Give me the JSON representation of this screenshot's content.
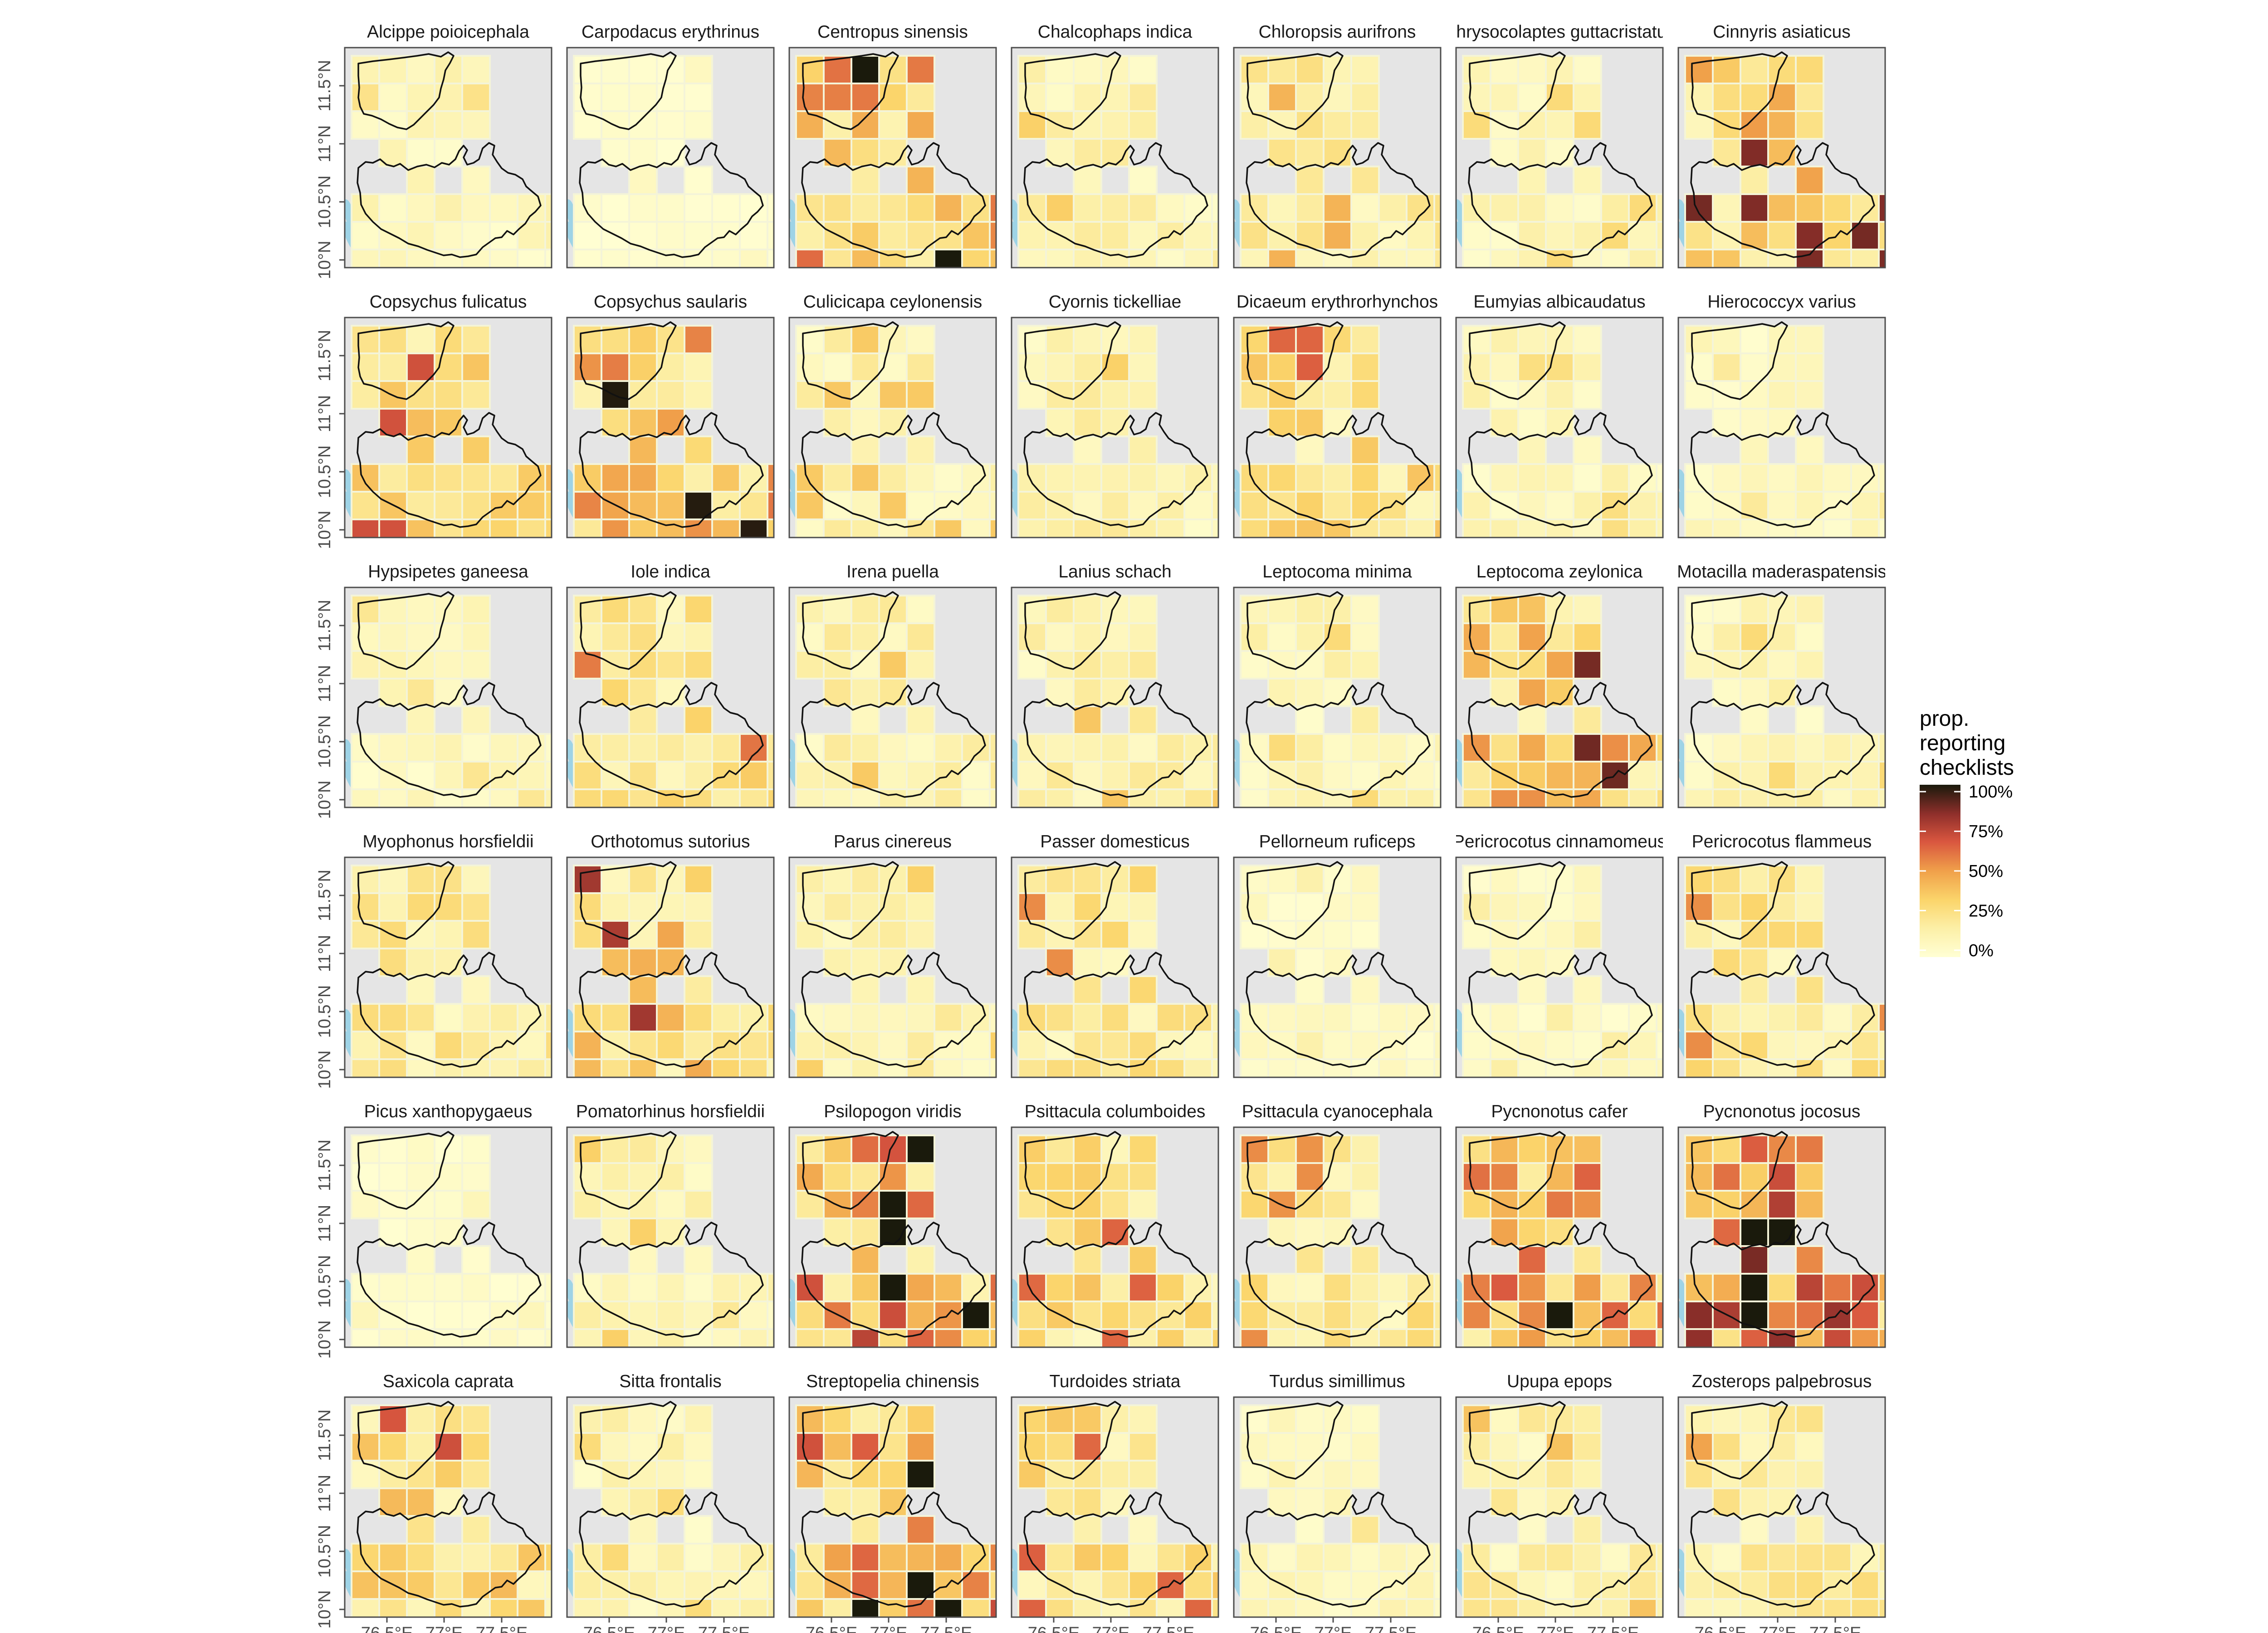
{
  "chart_data": {
    "type": "heatmap",
    "layout": {
      "columns": 7,
      "rows": 6
    },
    "x_ticks": [
      "76.5°E",
      "77°E",
      "77.5°E"
    ],
    "y_ticks": [
      "10°N",
      "10.5°N",
      "11°N",
      "11.5°N"
    ],
    "legend": {
      "title_lines": [
        "prop.",
        "reporting",
        "checklists"
      ],
      "labels": [
        "100%",
        "75%",
        "50%",
        "25%",
        "0%"
      ],
      "label_values": [
        100,
        75,
        50,
        25,
        0
      ],
      "colors": [
        "#ffffd4",
        "#fbd56b",
        "#f0a04a",
        "#e06a40",
        "#b93c36",
        "#7a2a26",
        "#1a1a0c"
      ],
      "placement": "right"
    },
    "colors": {
      "panel_background": "#e5e5e5",
      "panel_border": "#4d4d4d",
      "grid_line": "#f4f4d8",
      "outline": "#111111",
      "water": "#9ed3e6",
      "tick": "#4d4d4d"
    },
    "series": [
      {
        "name": "Alcippe poioicephala",
        "intensity": 0.1
      },
      {
        "name": "Carpodacus erythrinus",
        "intensity": 0.03
      },
      {
        "name": "Centropus sinensis",
        "intensity": 0.42
      },
      {
        "name": "Chalcophaps indica",
        "intensity": 0.14
      },
      {
        "name": "Chloropsis aurifrons",
        "intensity": 0.18
      },
      {
        "name": "Chrysocolaptes guttacristatus",
        "intensity": 0.12
      },
      {
        "name": "Cinnyris asiaticus",
        "intensity": 0.35
      },
      {
        "name": "Copsychus fulicatus",
        "intensity": 0.28
      },
      {
        "name": "Copsychus saularis",
        "intensity": 0.4
      },
      {
        "name": "Culicicapa ceylonensis",
        "intensity": 0.15
      },
      {
        "name": "Cyornis tickelliae",
        "intensity": 0.14
      },
      {
        "name": "Dicaeum erythrorhynchos",
        "intensity": 0.26
      },
      {
        "name": "Eumyias albicaudatus",
        "intensity": 0.11
      },
      {
        "name": "Hierococcyx varius",
        "intensity": 0.08
      },
      {
        "name": "Hypsipetes ganeesa",
        "intensity": 0.09
      },
      {
        "name": "Iole indica",
        "intensity": 0.24
      },
      {
        "name": "Irena puella",
        "intensity": 0.15
      },
      {
        "name": "Lanius schach",
        "intensity": 0.15
      },
      {
        "name": "Leptocoma minima",
        "intensity": 0.12
      },
      {
        "name": "Leptocoma zeylonica",
        "intensity": 0.36
      },
      {
        "name": "Motacilla maderaspatensis",
        "intensity": 0.12
      },
      {
        "name": "Myophonus horsfieldii",
        "intensity": 0.2
      },
      {
        "name": "Orthotomus sutorius",
        "intensity": 0.32
      },
      {
        "name": "Parus cinereus",
        "intensity": 0.14
      },
      {
        "name": "Passer domesticus",
        "intensity": 0.22
      },
      {
        "name": "Pellorneum ruficeps",
        "intensity": 0.06
      },
      {
        "name": "Pericrocotus cinnamomeus",
        "intensity": 0.07
      },
      {
        "name": "Pericrocotus flammeus",
        "intensity": 0.22
      },
      {
        "name": "Picus xanthopygaeus",
        "intensity": 0.04
      },
      {
        "name": "Pomatorhinus horsfieldii",
        "intensity": 0.14
      },
      {
        "name": "Psilopogon viridis",
        "intensity": 0.5
      },
      {
        "name": "Psittacula columboides",
        "intensity": 0.26
      },
      {
        "name": "Psittacula cyanocephala",
        "intensity": 0.22
      },
      {
        "name": "Pycnonotus cafer",
        "intensity": 0.44
      },
      {
        "name": "Pycnonotus jocosus",
        "intensity": 0.6
      },
      {
        "name": "Saxicola caprata",
        "intensity": 0.28
      },
      {
        "name": "Sitta frontalis",
        "intensity": 0.12
      },
      {
        "name": "Streptopelia chinensis",
        "intensity": 0.48
      },
      {
        "name": "Turdoides striata",
        "intensity": 0.26
      },
      {
        "name": "Turdus simillimus",
        "intensity": 0.09
      },
      {
        "name": "Upupa epops",
        "intensity": 0.16
      },
      {
        "name": "Zosterops palpebrosus",
        "intensity": 0.2
      }
    ]
  }
}
